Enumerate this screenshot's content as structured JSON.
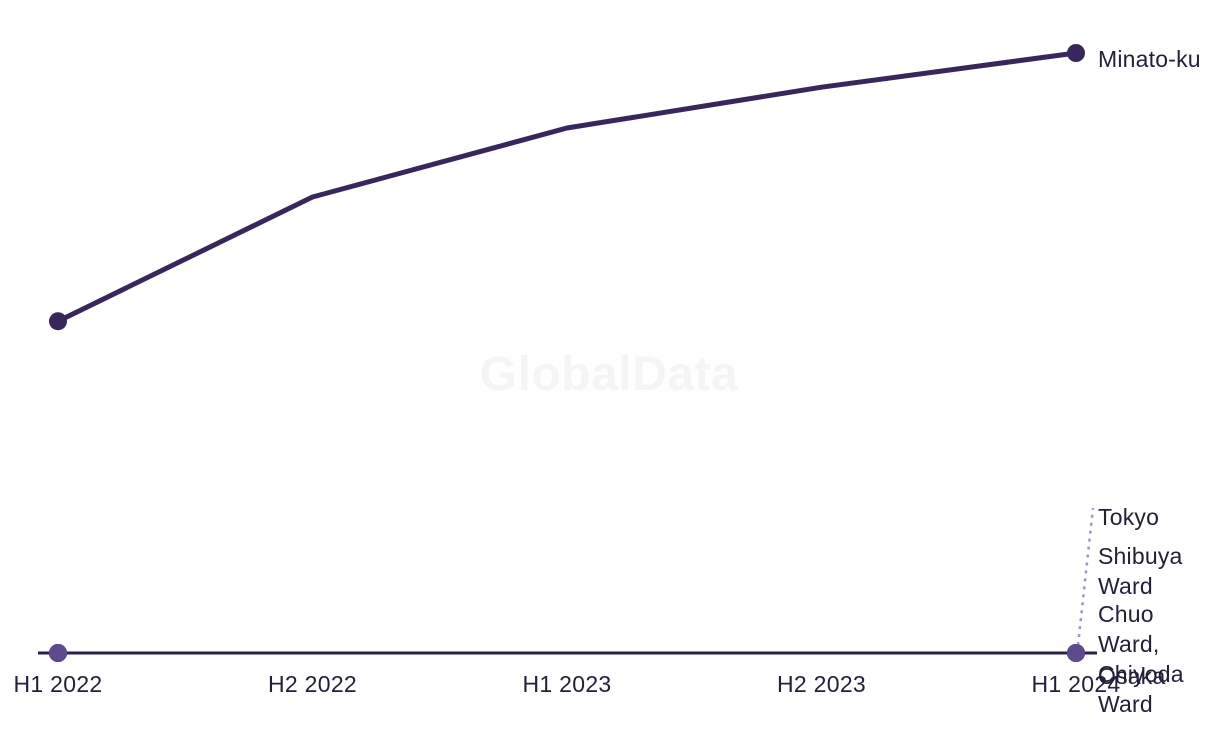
{
  "watermark": "GlobalData",
  "colors": {
    "background": "#ffffff",
    "main_line": "#38265c",
    "flat_line": "#2c2248",
    "overlap_marker": "#5e4b8d",
    "leader_dashed": "#a291cc",
    "text": "#232038",
    "watermark": "#f5f5f7"
  },
  "chart_data": {
    "type": "line",
    "title": "",
    "xlabel": "",
    "ylabel": "",
    "categories": [
      "H1 2022",
      "H2 2022",
      "H1 2023",
      "H2 2023",
      "H1 2024"
    ],
    "series": [
      {
        "name": "Minato-ku",
        "values": [
          55.3,
          76.0,
          87.5,
          94.3,
          100
        ],
        "color": "#38265c",
        "line_width": 5,
        "marker_color": "#38265c",
        "marker_radius": 9
      },
      {
        "name": "Tokyo",
        "values": [
          0,
          0,
          0,
          0,
          0
        ],
        "color": "#2c2248",
        "line_width": 3,
        "marker_color": "#5e4b8d",
        "marker_radius": 9
      },
      {
        "name": "Shibuya Ward",
        "values": [
          0,
          0,
          0,
          0,
          0
        ],
        "color": "#2c2248",
        "line_width": 3,
        "marker_color": "#5e4b8d",
        "marker_radius": 9
      },
      {
        "name": "Chuo Ward, Chiyoda Ward",
        "values": [
          0,
          0,
          0,
          0,
          0
        ],
        "color": "#2c2248",
        "line_width": 3,
        "marker_color": "#5e4b8d",
        "marker_radius": 9
      },
      {
        "name": "Osaka",
        "values": [
          0,
          0,
          0,
          0,
          0
        ],
        "color": "#2c2248",
        "line_width": 3,
        "marker_color": "#5e4b8d",
        "marker_radius": 9
      }
    ],
    "ylim": [
      0,
      100
    ],
    "grid": false,
    "y_axis_shown": false,
    "legend_position": "line-end-labels"
  }
}
